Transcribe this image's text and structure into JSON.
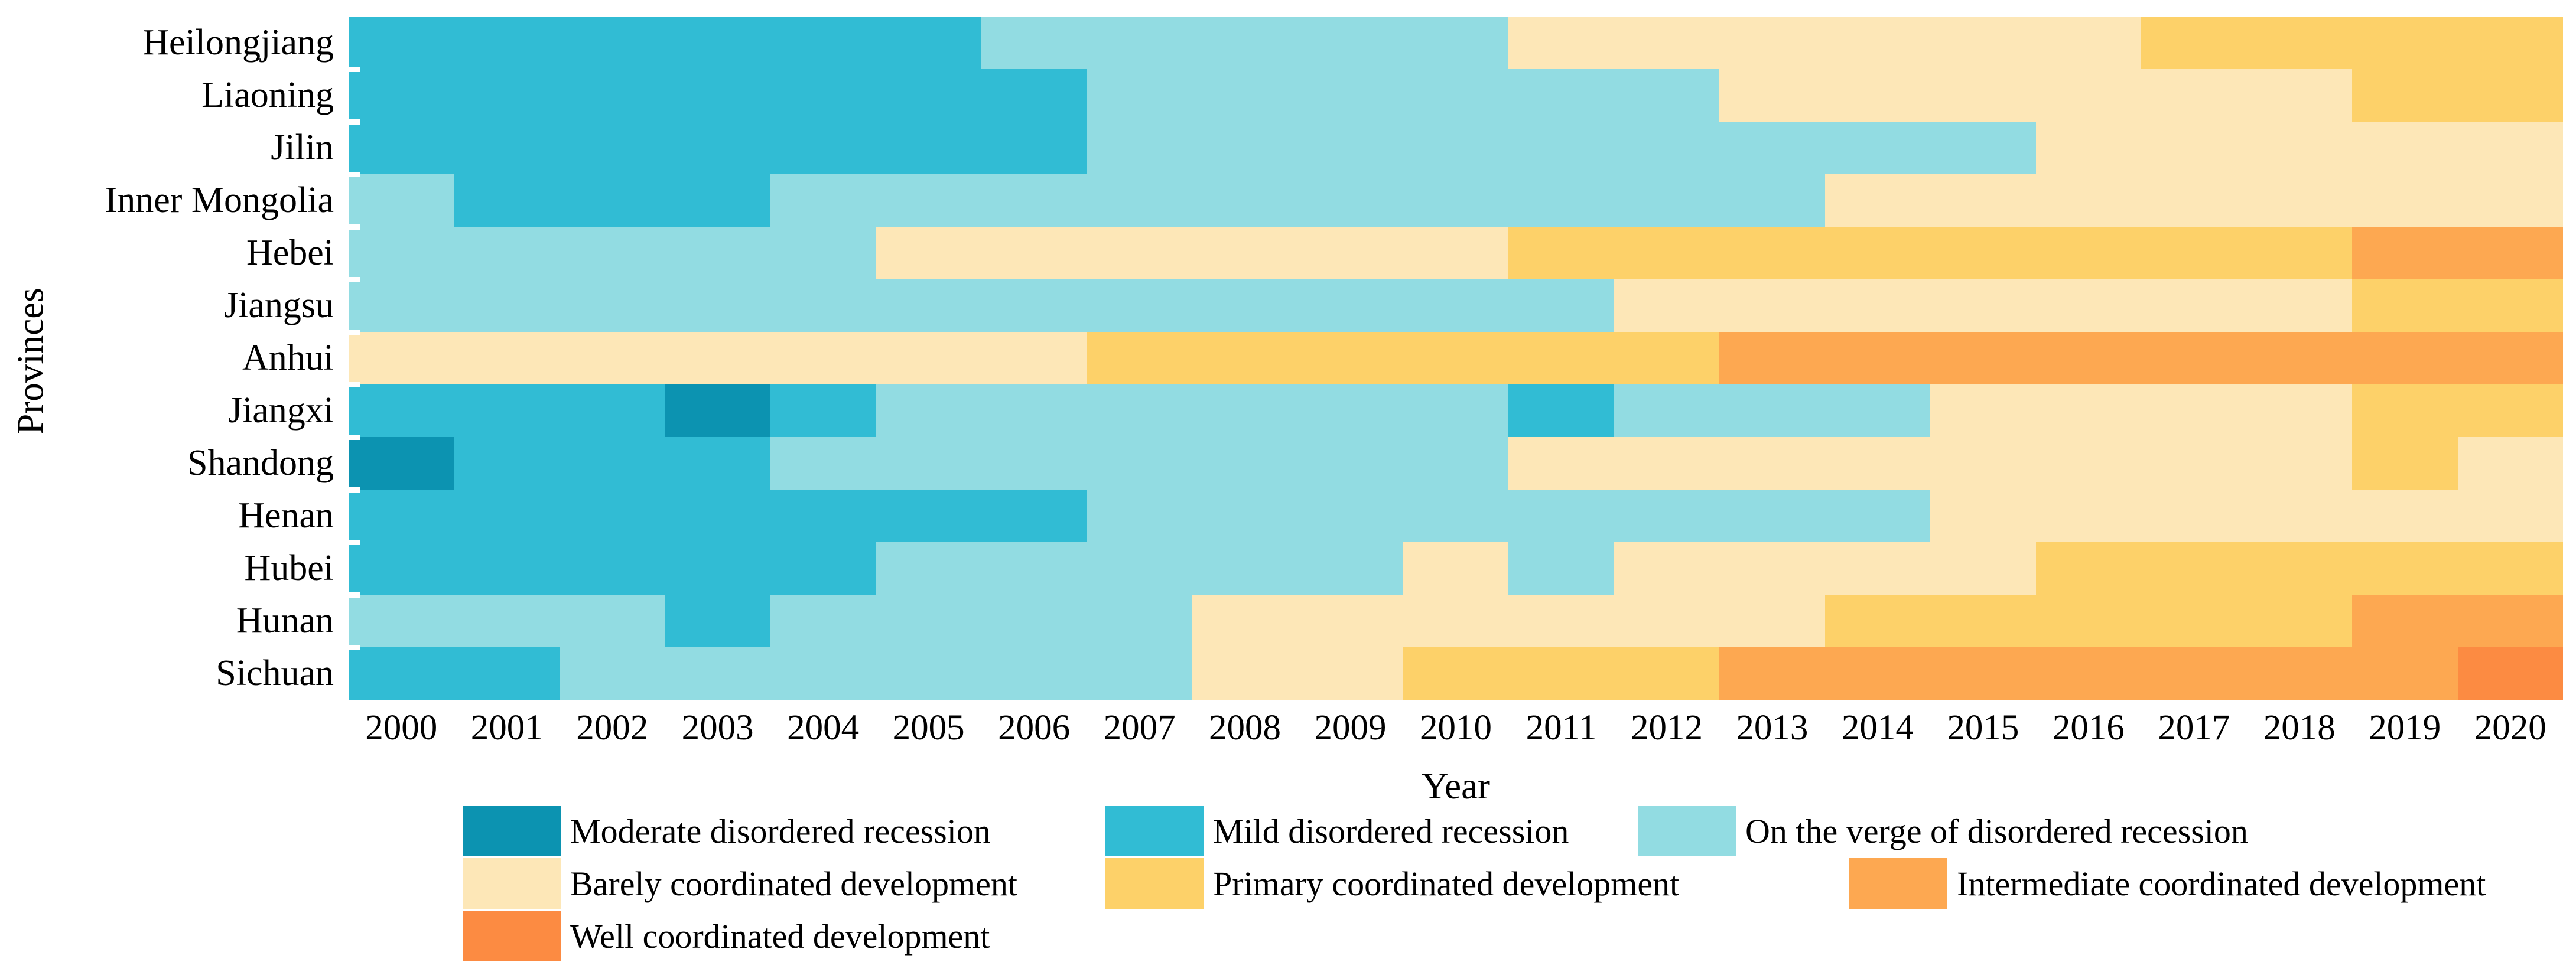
{
  "figure": {
    "x_axis_title": "Year",
    "y_axis_title": "Provinces"
  },
  "chart_data": {
    "type": "heatmap",
    "title": "",
    "xlabel": "Year",
    "ylabel": "Provinces",
    "x": [
      2000,
      2001,
      2002,
      2003,
      2004,
      2005,
      2006,
      2007,
      2008,
      2009,
      2010,
      2011,
      2012,
      2013,
      2014,
      2015,
      2016,
      2017,
      2018,
      2019,
      2020
    ],
    "legend_position": "bottom",
    "grid": false,
    "categories": [
      {
        "id": 1,
        "label": "Moderate disordered recession",
        "color": "#0c93b1"
      },
      {
        "id": 2,
        "label": "Mild disordered recession",
        "color": "#31bcd4"
      },
      {
        "id": 3,
        "label": "On the verge of disordered recession",
        "color": "#92dce2"
      },
      {
        "id": 4,
        "label": "Barely coordinated development",
        "color": "#fde7b7"
      },
      {
        "id": 5,
        "label": "Primary coordinated development",
        "color": "#fdd169"
      },
      {
        "id": 6,
        "label": "Intermediate coordinated development",
        "color": "#fda851"
      },
      {
        "id": 7,
        "label": "Well coordinated development",
        "color": "#fc8b42"
      }
    ],
    "series": [
      {
        "name": "Heilongjiang",
        "values": [
          2,
          2,
          2,
          2,
          2,
          2,
          3,
          3,
          3,
          3,
          3,
          4,
          4,
          4,
          4,
          4,
          4,
          5,
          5,
          5,
          5
        ]
      },
      {
        "name": "Liaoning",
        "values": [
          2,
          2,
          2,
          2,
          2,
          2,
          2,
          3,
          3,
          3,
          3,
          3,
          3,
          4,
          4,
          4,
          4,
          4,
          4,
          5,
          5
        ]
      },
      {
        "name": "Jilin",
        "values": [
          2,
          2,
          2,
          2,
          2,
          2,
          2,
          3,
          3,
          3,
          3,
          3,
          3,
          3,
          3,
          3,
          4,
          4,
          4,
          4,
          4
        ]
      },
      {
        "name": "Inner Mongolia",
        "values": [
          3,
          2,
          2,
          2,
          3,
          3,
          3,
          3,
          3,
          3,
          3,
          3,
          3,
          3,
          4,
          4,
          4,
          4,
          4,
          4,
          4
        ]
      },
      {
        "name": "Hebei",
        "values": [
          3,
          3,
          3,
          3,
          3,
          4,
          4,
          4,
          4,
          4,
          4,
          5,
          5,
          5,
          5,
          5,
          5,
          5,
          5,
          6,
          6
        ]
      },
      {
        "name": "Jiangsu",
        "values": [
          3,
          3,
          3,
          3,
          3,
          3,
          3,
          3,
          3,
          3,
          3,
          3,
          4,
          4,
          4,
          4,
          4,
          4,
          4,
          5,
          5
        ]
      },
      {
        "name": "Anhui",
        "values": [
          4,
          4,
          4,
          4,
          4,
          4,
          4,
          5,
          5,
          5,
          5,
          5,
          5,
          6,
          6,
          6,
          6,
          6,
          6,
          6,
          6
        ]
      },
      {
        "name": "Jiangxi",
        "values": [
          2,
          2,
          2,
          1,
          2,
          3,
          3,
          3,
          3,
          3,
          3,
          2,
          3,
          3,
          3,
          4,
          4,
          4,
          4,
          5,
          5
        ]
      },
      {
        "name": "Shandong",
        "values": [
          1,
          2,
          2,
          2,
          3,
          3,
          3,
          3,
          3,
          3,
          3,
          4,
          4,
          4,
          4,
          4,
          4,
          4,
          4,
          5,
          4
        ]
      },
      {
        "name": "Henan",
        "values": [
          2,
          2,
          2,
          2,
          2,
          2,
          2,
          3,
          3,
          3,
          3,
          3,
          3,
          3,
          3,
          4,
          4,
          4,
          4,
          4,
          4
        ]
      },
      {
        "name": "Hubei",
        "values": [
          2,
          2,
          2,
          2,
          2,
          3,
          3,
          3,
          3,
          3,
          4,
          3,
          4,
          4,
          4,
          4,
          5,
          5,
          5,
          5,
          5
        ]
      },
      {
        "name": "Hunan",
        "values": [
          3,
          3,
          3,
          2,
          3,
          3,
          3,
          3,
          4,
          4,
          4,
          4,
          4,
          4,
          5,
          5,
          5,
          5,
          5,
          6,
          6
        ]
      },
      {
        "name": "Sichuan",
        "values": [
          2,
          2,
          3,
          3,
          3,
          3,
          3,
          3,
          4,
          4,
          5,
          5,
          5,
          6,
          6,
          6,
          6,
          6,
          6,
          6,
          7
        ]
      }
    ]
  }
}
